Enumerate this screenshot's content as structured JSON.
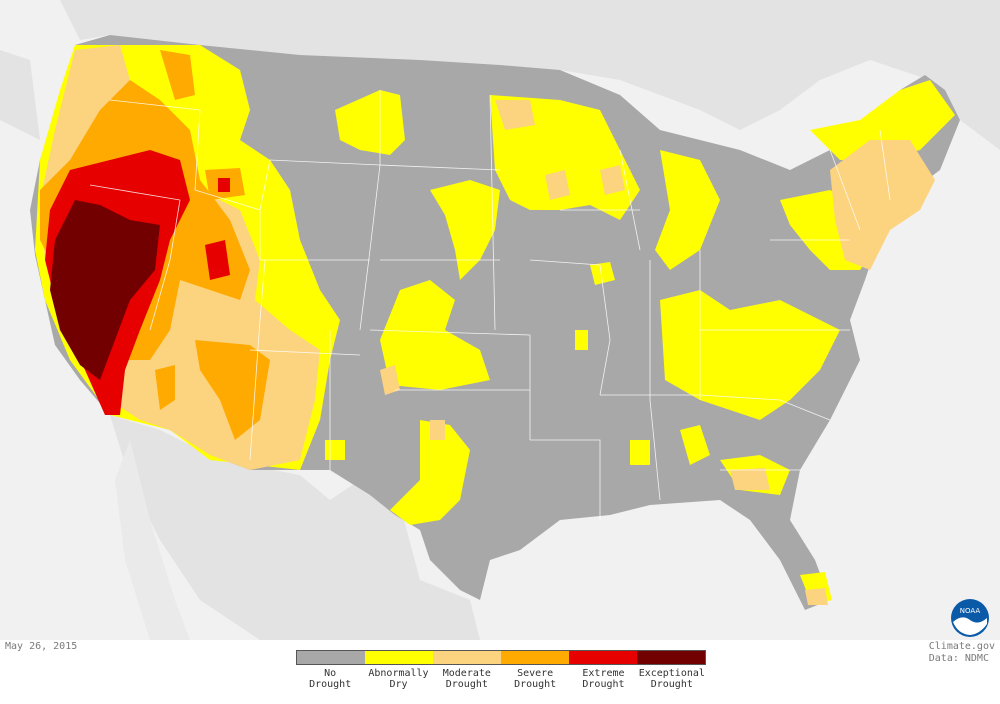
{
  "date": "May 26, 2015",
  "credit": {
    "line1": "Climate.gov",
    "line2": "Data: NDMC"
  },
  "logo": {
    "text": "NOAA"
  },
  "colors": {
    "water": "#f1f1f1",
    "foreign_land": "#e3e3e3",
    "state_border": "#ffffff",
    "no_drought": "#a8a8a8",
    "abnormally_dry": "#ffff00",
    "moderate": "#fcd37f",
    "severe": "#ffaa00",
    "extreme": "#e60000",
    "exceptional": "#730000"
  },
  "legend": [
    {
      "line1": "No",
      "line2": "Drought",
      "color": "#a8a8a8"
    },
    {
      "line1": "Abnormally",
      "line2": "Dry",
      "color": "#ffff00"
    },
    {
      "line1": "Moderate",
      "line2": "Drought",
      "color": "#fcd37f"
    },
    {
      "line1": "Severe",
      "line2": "Drought",
      "color": "#ffaa00"
    },
    {
      "line1": "Extreme",
      "line2": "Drought",
      "color": "#e60000"
    },
    {
      "line1": "Exceptional",
      "line2": "Drought",
      "color": "#730000"
    }
  ]
}
